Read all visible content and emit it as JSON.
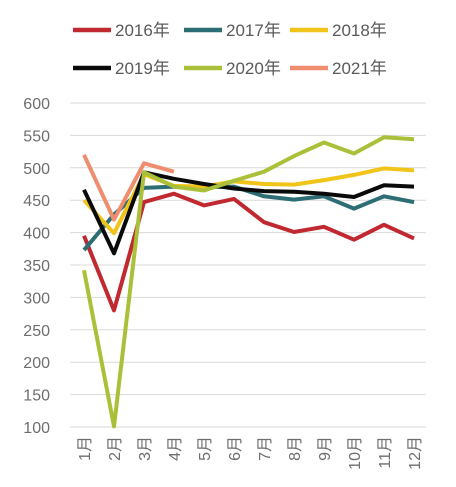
{
  "chart_data": {
    "type": "line",
    "title": "",
    "xlabel": "",
    "ylabel": "",
    "categories": [
      "1月",
      "2月",
      "3月",
      "4月",
      "5月",
      "6月",
      "7月",
      "8月",
      "9月",
      "10月",
      "11月",
      "12月"
    ],
    "y_ticks": [
      "100",
      "150",
      "200",
      "250",
      "300",
      "350",
      "400",
      "450",
      "500",
      "550",
      "600"
    ],
    "ylim": [
      100,
      600
    ],
    "grid": true,
    "legend_position": "top",
    "series": [
      {
        "name": "2016年",
        "color": "#c0292f",
        "values": [
          395,
          280,
          447,
          460,
          442,
          452,
          416,
          401,
          409,
          389,
          412,
          391
        ]
      },
      {
        "name": "2017年",
        "color": "#2c6e74",
        "values": [
          373,
          428,
          469,
          471,
          470,
          471,
          456,
          451,
          456,
          437,
          456,
          447
        ]
      },
      {
        "name": "2018年",
        "color": "#f0c419",
        "values": [
          450,
          399,
          490,
          472,
          471,
          479,
          475,
          474,
          481,
          489,
          499,
          496
        ]
      },
      {
        "name": "2019年",
        "color": "#0a0a0a",
        "values": [
          466,
          368,
          493,
          483,
          475,
          468,
          464,
          463,
          460,
          455,
          473,
          471
        ]
      },
      {
        "name": "2020年",
        "color": "#a9c038",
        "values": [
          342,
          101,
          493,
          471,
          465,
          480,
          494,
          518,
          539,
          522,
          547,
          544
        ]
      },
      {
        "name": "2021年",
        "color": "#ef8e6f",
        "values": [
          520,
          420,
          507,
          494,
          null,
          null,
          null,
          null,
          null,
          null,
          null,
          null
        ]
      }
    ]
  }
}
